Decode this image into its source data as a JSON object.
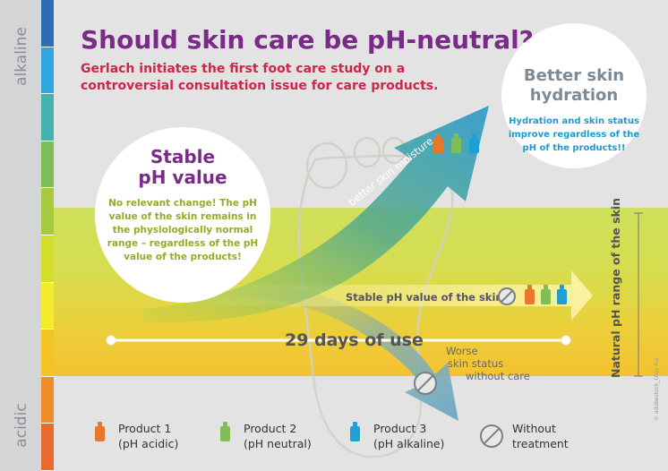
{
  "scale": {
    "top_label": "alkaline",
    "bottom_label": "acidic",
    "colors": [
      "#2e6db4",
      "#2fa6df",
      "#46b2ad",
      "#7fbe57",
      "#a6c93e",
      "#d5dd2c",
      "#f4ec2a",
      "#f4c424",
      "#ee8d2a",
      "#e86a2c"
    ]
  },
  "header": {
    "title": "Should skin care be pH-neutral?",
    "subtitle": "Gerlach initiates the first foot care study on a controversial consultation issue for care products."
  },
  "stable_circle": {
    "title_line1": "Stable",
    "title_line2": "pH value",
    "text": "No relevant change! The pH value of the skin remains in the physiologically normal range – regardless of the pH value of the products!"
  },
  "hydration_circle": {
    "title_line1": "Better skin",
    "title_line2": "hydration",
    "text": "Hydration and skin status improve regardless of the pH of the products!!"
  },
  "arrows": {
    "up_label": "better skin moisture",
    "stable_label": "Stable pH value of the skin",
    "down_label_line1": "Worse",
    "down_label_line2": "skin status",
    "down_label_line3": "without care"
  },
  "timeline": {
    "label": "29 days of use"
  },
  "right_label": "Natural pH range of the skin",
  "legend": [
    {
      "name": "Product 1",
      "detail": "(pH acidic)",
      "color": "#e8772a"
    },
    {
      "name": "Product 2",
      "detail": "(pH neutral)",
      "color": "#7fbe57"
    },
    {
      "name": "Product 3",
      "detail": "(pH alkaline)",
      "color": "#1ea0d6"
    },
    {
      "name": "Without",
      "detail": "treatment",
      "icon": "no-treatment-icon"
    }
  ],
  "credit": "© adobestock_Olga Rai"
}
